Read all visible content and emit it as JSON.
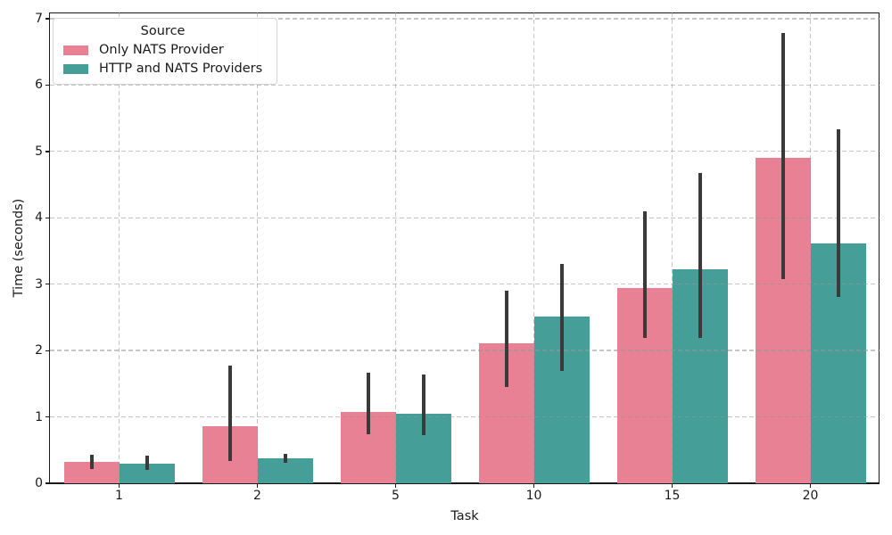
{
  "chart_data": {
    "type": "bar",
    "title": "",
    "xlabel": "Task",
    "ylabel": "Time (seconds)",
    "categories": [
      "1",
      "2",
      "5",
      "10",
      "15",
      "20"
    ],
    "series": [
      {
        "name": "Only NATS Provider",
        "color": "#e78193",
        "values": [
          0.32,
          0.86,
          1.08,
          2.11,
          2.94,
          4.91
        ],
        "err_low": [
          0.21,
          0.33,
          0.74,
          1.45,
          2.19,
          3.08
        ],
        "err_high": [
          0.43,
          1.77,
          1.66,
          2.9,
          4.1,
          6.78
        ]
      },
      {
        "name": "HTTP and NATS Providers",
        "color": "#459e97",
        "values": [
          0.29,
          0.38,
          1.05,
          2.51,
          3.22,
          3.61
        ],
        "err_low": [
          0.2,
          0.31,
          0.72,
          1.69,
          2.19,
          2.81
        ],
        "err_high": [
          0.42,
          0.44,
          1.64,
          3.31,
          4.67,
          5.33
        ]
      }
    ],
    "legend": {
      "title": "Source",
      "position": "upper-left"
    },
    "ylim": [
      0,
      7.1
    ],
    "yticks": [
      0,
      1,
      2,
      3,
      4,
      5,
      6,
      7
    ],
    "grid": {
      "enabled": true,
      "style": "dashed",
      "color": "#cdcdcd"
    },
    "errorbar_color": "#3a3a3a"
  }
}
